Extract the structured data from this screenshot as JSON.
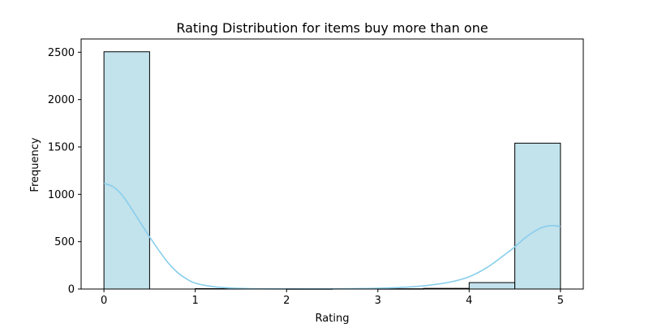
{
  "chart_data": {
    "type": "bar",
    "title": "Rating Distribution for items buy more than one",
    "xlabel": "Rating",
    "ylabel": "Frequency",
    "xlim": [
      -0.25,
      5.25
    ],
    "ylim": [
      0,
      2640
    ],
    "xticks": [
      0,
      1,
      2,
      3,
      4,
      5
    ],
    "yticks": [
      0,
      500,
      1000,
      1500,
      2000,
      2500
    ],
    "bins": [
      {
        "x0": 0.0,
        "x1": 0.5,
        "value": 2505
      },
      {
        "x0": 0.5,
        "x1": 1.0,
        "value": 0
      },
      {
        "x0": 1.0,
        "x1": 1.5,
        "value": 4
      },
      {
        "x0": 1.5,
        "x1": 2.0,
        "value": 0
      },
      {
        "x0": 2.0,
        "x1": 2.5,
        "value": 2
      },
      {
        "x0": 2.5,
        "x1": 3.0,
        "value": 0
      },
      {
        "x0": 3.0,
        "x1": 3.5,
        "value": 3
      },
      {
        "x0": 3.5,
        "x1": 4.0,
        "value": 7
      },
      {
        "x0": 4.0,
        "x1": 4.5,
        "value": 68
      },
      {
        "x0": 4.5,
        "x1": 5.0,
        "value": 1540
      }
    ],
    "kde": {
      "x": [
        0,
        0.1,
        0.2,
        0.3,
        0.4,
        0.5,
        0.6,
        0.7,
        0.8,
        0.9,
        1.0,
        1.2,
        1.4,
        1.6,
        1.8,
        2.0,
        2.5,
        3.0,
        3.4,
        3.6,
        3.8,
        4.0,
        4.2,
        4.4,
        4.5,
        4.6,
        4.7,
        4.8,
        4.9,
        5.0
      ],
      "y": [
        1115,
        1080,
        990,
        850,
        700,
        550,
        410,
        280,
        180,
        110,
        62,
        25,
        10,
        4,
        2,
        1,
        2,
        8,
        25,
        45,
        75,
        130,
        230,
        370,
        445,
        530,
        600,
        650,
        670,
        660
      ]
    },
    "grid": false,
    "bar_color": "#add8e6",
    "kde_color": "#87ceeb"
  }
}
